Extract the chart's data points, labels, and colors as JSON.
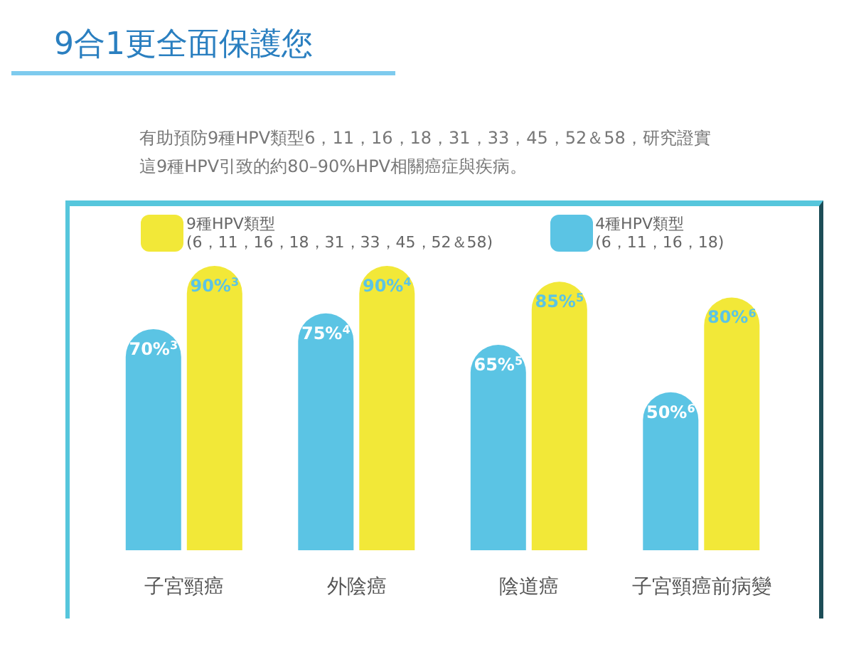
{
  "chart_data": {
    "type": "bar",
    "title": "9合1更全面保護您",
    "subtitle": "有助預防9種HPV類型6，11，16，18，31，33，45，52＆58，研究證實這9種HPV引致的約80–90%HPV相關癌症與疾病。",
    "categories": [
      "子宮頸癌",
      "外陰癌",
      "陰道癌",
      "子宮頸癌前病變"
    ],
    "series": [
      {
        "name": "4種HPV類型\n(6，11，16，18)",
        "color": "#5bc4e4",
        "values": [
          70,
          75,
          65,
          50
        ],
        "value_labels": [
          "70%$^{3}$",
          "75%$^{4}$",
          "65%$^{5}$",
          "50%$^{6}$"
        ]
      },
      {
        "name": "9種HPV類型\n(6，11，16，18，31，33，45，52＆58)",
        "color": "#f2e838",
        "values": [
          90,
          90,
          85,
          80
        ],
        "value_labels": [
          "90%$^{3}$",
          "90%$^{4}$",
          "85%$^{5}$",
          "80%$^{6}$"
        ]
      }
    ],
    "legend": "top left"
  }
}
